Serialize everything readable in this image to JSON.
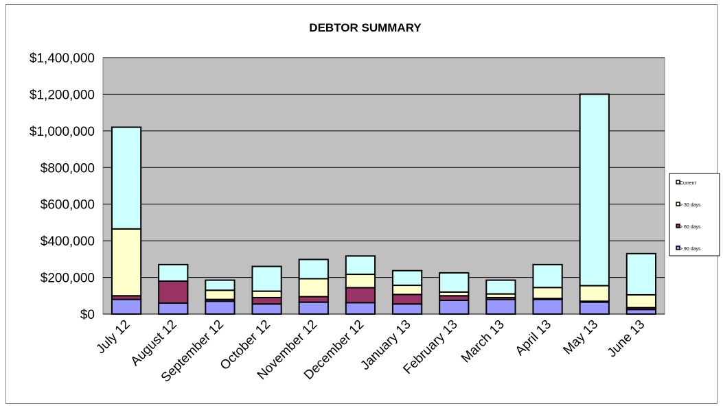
{
  "chart_data": {
    "type": "bar",
    "stacked": true,
    "title": "DEBTOR SUMMARY",
    "xlabel": "",
    "ylabel": "",
    "categories": [
      "July 12",
      "August 12",
      "September 12",
      "October 12",
      "November 12",
      "December 12",
      "January 13",
      "February 13",
      "March 13",
      "April 13",
      "May 13",
      "June 13"
    ],
    "ylim": [
      0,
      1400000
    ],
    "yticks": [
      0,
      200000,
      400000,
      600000,
      800000,
      1000000,
      1200000,
      1400000
    ],
    "ytick_labels": [
      "$0",
      "$200,000",
      "$400,000",
      "$600,000",
      "$800,000",
      "$1,000,000",
      "$1,200,000",
      "$1,400,000"
    ],
    "grid": true,
    "legend_position": "right",
    "series": [
      {
        "name": "> 90 days",
        "color": "#9999ff",
        "values": [
          80000,
          60000,
          70000,
          55000,
          65000,
          62000,
          55000,
          75000,
          80000,
          80000,
          65000,
          25000
        ]
      },
      {
        "name": "> 60 days",
        "color": "#993366",
        "values": [
          20000,
          120000,
          10000,
          35000,
          30000,
          82000,
          52000,
          25000,
          10000,
          5000,
          5000,
          10000
        ]
      },
      {
        "name": "> 30 days",
        "color": "#ffffcc",
        "values": [
          365000,
          0,
          50000,
          35000,
          98000,
          73000,
          50000,
          20000,
          20000,
          60000,
          85000,
          70000
        ]
      },
      {
        "name": "Current",
        "color": "#ccffff",
        "values": [
          555000,
          90000,
          55000,
          135000,
          105000,
          100000,
          80000,
          105000,
          75000,
          125000,
          1045000,
          225000
        ]
      }
    ]
  }
}
